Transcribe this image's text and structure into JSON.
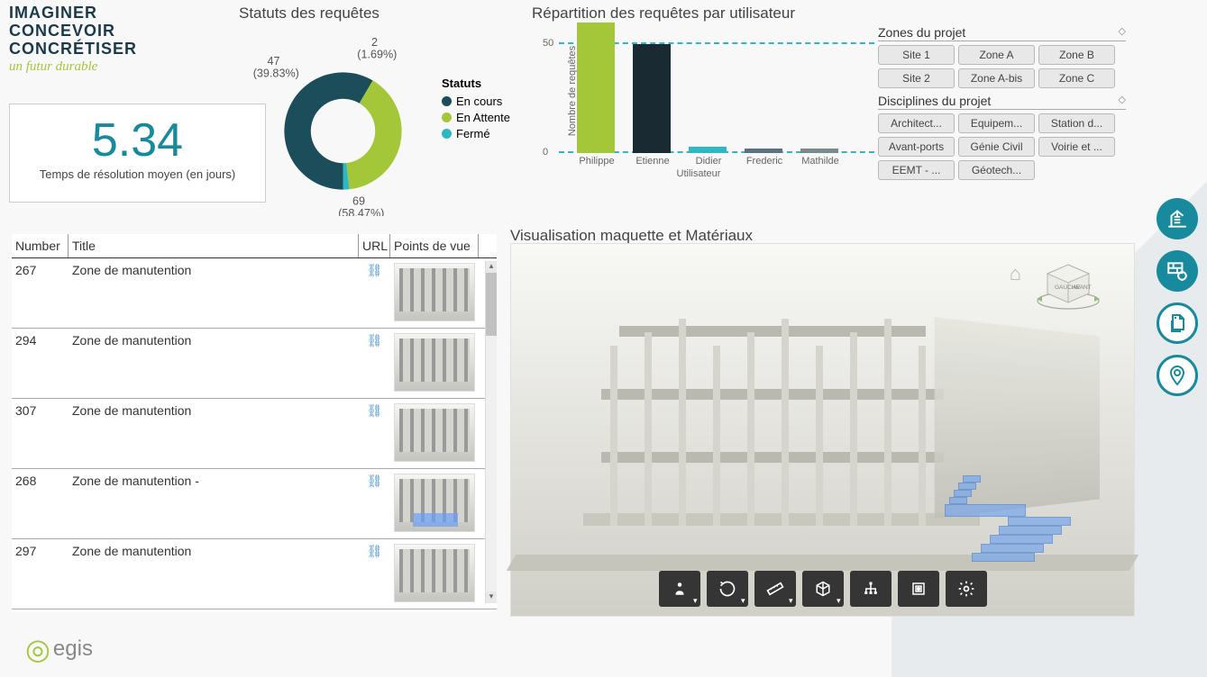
{
  "colors": {
    "accent": "#188a9e",
    "green": "#a4c639",
    "teal": "#1b4e5a",
    "cyan": "#2eb8c4"
  },
  "logo": {
    "l1": "IMAGINER",
    "l2": "CONCEVOIR",
    "l3": "CONCRÉTISER",
    "script": "un futur durable"
  },
  "kpi": {
    "value": "5.34",
    "label": "Temps de résolution moyen (en jours)"
  },
  "donut": {
    "title": "Statuts des requêtes",
    "legend_title": "Statuts",
    "slices": [
      {
        "label": "En cours",
        "value": 69,
        "pct": "(58.47%)",
        "color": "#1b4e5a",
        "annot": "69"
      },
      {
        "label": "En Attente",
        "value": 47,
        "pct": "(39.83%)",
        "color": "#a4c639",
        "annot": "47"
      },
      {
        "label": "Fermé",
        "value": 2,
        "pct": "(1.69%)",
        "color": "#2eb8c4",
        "annot": "2"
      }
    ]
  },
  "bars": {
    "title": "Répartition des requêtes par utilisateur",
    "ylabel": "Nombre de requêtes",
    "xlabel": "Utilisateur",
    "ymax": 60,
    "ytick": 50,
    "data": [
      {
        "label": "Philippe",
        "value": 60,
        "color": "#a4c639"
      },
      {
        "label": "Etienne",
        "value": 50,
        "color": "#1a2a33"
      },
      {
        "label": "Didier",
        "value": 3,
        "color": "#2eb8c4"
      },
      {
        "label": "Frederic",
        "value": 2,
        "color": "#5b7080"
      },
      {
        "label": "Mathilde",
        "value": 2,
        "color": "#7a8a8a"
      }
    ]
  },
  "zones": {
    "title": "Zones du projet",
    "items": [
      "Site 1",
      "Zone A",
      "Zone B",
      "Site 2",
      "Zone A-bis",
      "Zone C"
    ]
  },
  "disc": {
    "title": "Disciplines du projet",
    "items": [
      "Architect...",
      "Equipem...",
      "Station d...",
      "Avant-ports",
      "Génie Civil",
      "Voirie et ...",
      "EEMT - ...",
      "Géotech..."
    ]
  },
  "table": {
    "headers": {
      "number": "Number",
      "title": "Title",
      "url": "URL",
      "pov": "Points de vue"
    },
    "rows": [
      {
        "number": "267",
        "title": "Zone de manutention",
        "hl": false
      },
      {
        "number": "294",
        "title": "Zone de manutention",
        "hl": false
      },
      {
        "number": "307",
        "title": "Zone de manutention",
        "hl": false
      },
      {
        "number": "268",
        "title": "Zone de manutention -",
        "hl": true
      },
      {
        "number": "297",
        "title": "Zone de manutention",
        "hl": false
      }
    ]
  },
  "viz": {
    "title": "Visualisation maquette et Matériaux",
    "cube": {
      "l": "GAUCHE",
      "r": "AVANT"
    }
  },
  "toolbar": [
    "person",
    "orbit",
    "measure",
    "cube",
    "tree",
    "section",
    "settings"
  ],
  "egis": "egis"
}
